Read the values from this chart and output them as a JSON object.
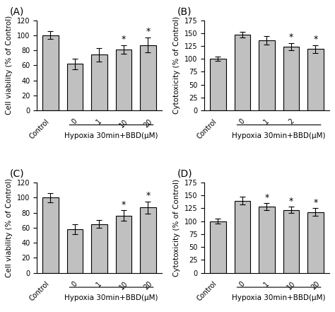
{
  "panels": [
    {
      "label": "(A)",
      "ylabel": "Cell viability (% of Control)",
      "ylim": [
        0,
        120
      ],
      "yticks": [
        0,
        20,
        40,
        60,
        80,
        100,
        120
      ],
      "values": [
        100,
        62,
        74,
        81,
        87
      ],
      "errors": [
        5,
        7,
        9,
        6,
        10
      ],
      "sig": [
        false,
        false,
        false,
        true,
        true
      ],
      "xtick_labels": [
        "Control",
        "0",
        "1",
        "10",
        "20"
      ],
      "xlabel": "Hypoxia 30min+BBD(μM)"
    },
    {
      "label": "(B)",
      "ylabel": "Cytotoxicity (% of Control)",
      "ylim": [
        0,
        175
      ],
      "yticks": [
        0,
        25,
        50,
        75,
        100,
        125,
        150,
        175
      ],
      "values": [
        100,
        147,
        136,
        124,
        119
      ],
      "errors": [
        4,
        6,
        8,
        7,
        8
      ],
      "sig": [
        false,
        false,
        false,
        true,
        true
      ],
      "xtick_labels": [
        "Control",
        "0",
        "1",
        "2"
      ],
      "xlabel": "Hypoxia 30min+BBD(μM)",
      "missing_second_bar": true
    },
    {
      "label": "(C)",
      "ylabel": "Cell viability (% of Control)",
      "ylim": [
        0,
        120
      ],
      "yticks": [
        0,
        20,
        40,
        60,
        80,
        100,
        120
      ],
      "values": [
        100,
        58,
        65,
        76,
        87
      ],
      "errors": [
        6,
        7,
        5,
        7,
        8
      ],
      "sig": [
        false,
        false,
        false,
        true,
        true
      ],
      "xtick_labels": [
        "Control",
        "0",
        "1",
        "10",
        "20"
      ],
      "xlabel": "Hypoxia 30min+BBD(μM)"
    },
    {
      "label": "(D)",
      "ylabel": "Cytotoxicity (% of Control)",
      "ylim": [
        0,
        175
      ],
      "yticks": [
        0,
        25,
        50,
        75,
        100,
        125,
        150,
        175
      ],
      "values": [
        100,
        140,
        128,
        122,
        118
      ],
      "errors": [
        5,
        8,
        7,
        6,
        8
      ],
      "sig": [
        false,
        false,
        true,
        true,
        true
      ],
      "xtick_labels": [
        "Control",
        "0",
        "1",
        "10",
        "20"
      ],
      "xlabel": "Hypoxia 30min+BBD(μM)"
    }
  ],
  "bar_color": "#c0c0c0",
  "bar_edgecolor": "#000000",
  "bar_width": 0.65,
  "capsize": 3,
  "label_fontsize": 7.5,
  "tick_fontsize": 7,
  "sig_fontsize": 9,
  "panel_label_fontsize": 10
}
